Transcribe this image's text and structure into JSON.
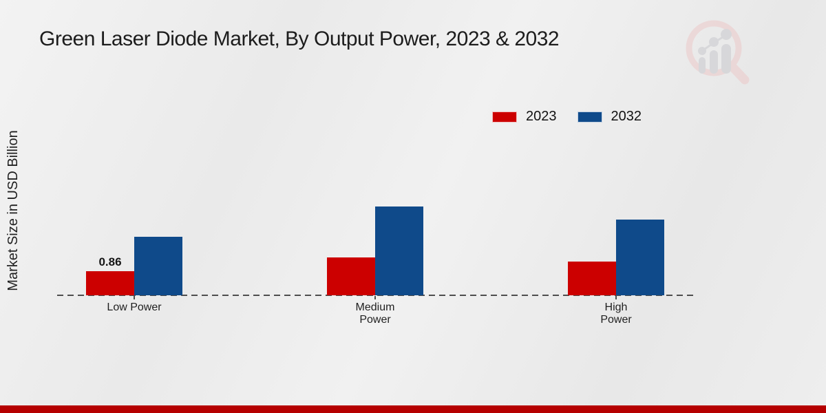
{
  "title": "Green Laser Diode Market, By Output Power, 2023 & 2032",
  "ylabel": "Market Size in USD Billion",
  "watermark_icon": "magnifier-bar-chart-logo",
  "footer": {
    "accent_color": "#b50000"
  },
  "chart_data": {
    "type": "bar",
    "title": "Green Laser Diode Market, By Output Power, 2023 & 2032",
    "ylabel": "Market Size in USD Billion",
    "xlabel": "",
    "categories": [
      "Low Power",
      "Medium Power",
      "High Power"
    ],
    "tick_labels": [
      "Low Power",
      "Medium\nPower",
      "High\nPower"
    ],
    "series": [
      {
        "name": "2023",
        "color": "#cc0000",
        "values": [
          0.86,
          1.35,
          1.2
        ]
      },
      {
        "name": "2032",
        "color": "#0f4a8a",
        "values": [
          2.1,
          3.17,
          2.7
        ]
      }
    ],
    "data_labels": [
      {
        "series_index": 0,
        "category_index": 0,
        "text": "0.86"
      }
    ],
    "ylim": [
      0,
      3.5
    ],
    "grid": false,
    "y_axis_ticks_visible": false,
    "baseline_style": "dashed",
    "legend_position": "top-right"
  }
}
